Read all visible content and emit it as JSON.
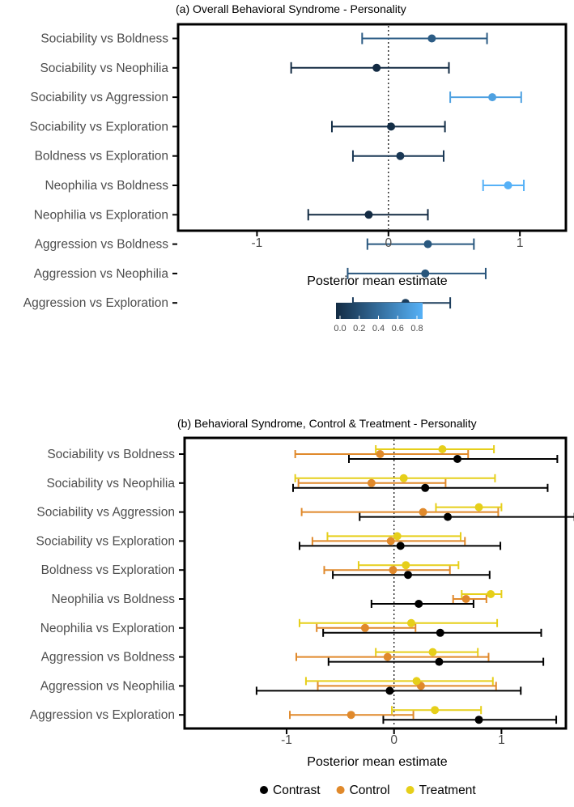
{
  "chart_data": [
    {
      "type": "forest",
      "title": "(a) Overall Behavioral Syndrome - Personality",
      "xlabel": "Posterior mean estimate",
      "ylabel": "",
      "xlim": [
        -1.6,
        1.35
      ],
      "xticks": [
        -1,
        0,
        1
      ],
      "xtick_labels": [
        "-1",
        "0",
        "1"
      ],
      "reference_line": 0,
      "categories": [
        "Sociability vs Boldness",
        "Sociability vs Neophilia",
        "Sociability vs Aggression",
        "Sociability vs Exploration",
        "Boldness vs Exploration",
        "Neophilia vs Boldness",
        "Neophilia vs Exploration",
        "Aggression vs Boldness",
        "Aggression vs Neophilia",
        "Aggression vs Exploration"
      ],
      "estimates": [
        0.33,
        -0.09,
        0.79,
        0.02,
        0.09,
        0.91,
        -0.15,
        0.3,
        0.28,
        0.13
      ],
      "lower": [
        -0.2,
        -0.74,
        0.47,
        -0.43,
        -0.27,
        0.72,
        -0.61,
        -0.16,
        -0.31,
        -0.27
      ],
      "upper": [
        0.75,
        0.46,
        1.01,
        0.43,
        0.42,
        1.03,
        0.3,
        0.65,
        0.74,
        0.47
      ],
      "colorbar": {
        "ticks": [
          0.0,
          0.2,
          0.4,
          0.6,
          0.8
        ],
        "tick_labels": [
          "0.0",
          "0.2",
          "0.4",
          "0.6",
          "0.8"
        ],
        "low_color": "#132b43",
        "high_color": "#56b1f7"
      }
    },
    {
      "type": "forest",
      "title": "(b) Behavioral Syndrome, Control & Treatment - Personality",
      "xlabel": "Posterior mean estimate",
      "ylabel": "",
      "xlim": [
        -1.95,
        1.6
      ],
      "xticks": [
        -1,
        0,
        1
      ],
      "xtick_labels": [
        "-1",
        "0",
        "1"
      ],
      "reference_line": 0,
      "categories": [
        "Sociability vs Boldness",
        "Sociability vs Neophilia",
        "Sociability vs Aggression",
        "Sociability vs Exploration",
        "Boldness vs Exploration",
        "Neophilia vs Boldness",
        "Neophilia vs Exploration",
        "Aggression vs Boldness",
        "Aggression vs Neophilia",
        "Aggression vs Exploration"
      ],
      "series": [
        {
          "name": "Contrast",
          "color": "#000000",
          "estimates": [
            0.59,
            0.29,
            0.5,
            0.06,
            0.13,
            0.23,
            0.43,
            0.42,
            -0.04,
            0.79
          ],
          "lower": [
            -0.42,
            -0.94,
            -0.32,
            -0.88,
            -0.57,
            -0.21,
            -0.66,
            -0.61,
            -1.28,
            -0.1
          ],
          "upper": [
            1.52,
            1.43,
            1.68,
            0.99,
            0.89,
            0.74,
            1.37,
            1.39,
            1.18,
            1.51
          ]
        },
        {
          "name": "Control",
          "color": "#e0892b",
          "estimates": [
            -0.13,
            -0.21,
            0.27,
            -0.03,
            -0.01,
            0.67,
            -0.27,
            -0.06,
            0.25,
            -0.4
          ],
          "lower": [
            -0.92,
            -0.89,
            -0.86,
            -0.76,
            -0.65,
            0.55,
            -0.72,
            -0.91,
            -0.71,
            -0.97
          ],
          "upper": [
            0.69,
            0.48,
            0.97,
            0.66,
            0.52,
            0.86,
            0.2,
            0.88,
            0.95,
            0.18
          ]
        },
        {
          "name": "Treatment",
          "color": "#e6cf1a",
          "estimates": [
            0.45,
            0.09,
            0.79,
            0.03,
            0.11,
            0.9,
            0.16,
            0.36,
            0.21,
            0.38
          ],
          "lower": [
            -0.17,
            -0.92,
            0.39,
            -0.62,
            -0.33,
            0.63,
            -0.88,
            -0.17,
            -0.82,
            -0.02
          ],
          "upper": [
            0.93,
            0.94,
            1.0,
            0.62,
            0.6,
            1.0,
            0.96,
            0.78,
            0.92,
            0.81
          ]
        }
      ]
    }
  ]
}
